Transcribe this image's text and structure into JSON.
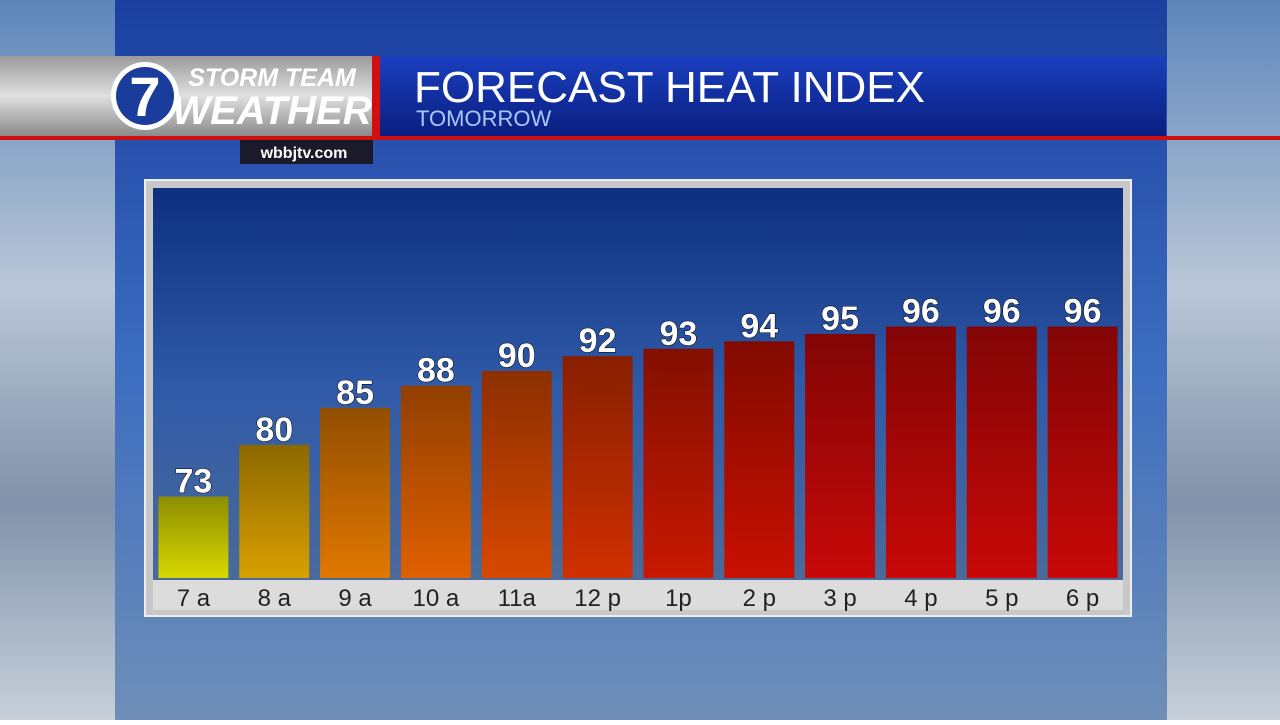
{
  "header": {
    "logo": "7",
    "brand_top": "STORM TEAM",
    "brand_bottom": "WEATHER",
    "website": "wbbjtv.com"
  },
  "chart_data": {
    "type": "bar",
    "title": "FORECAST HEAT INDEX",
    "subtitle": "TOMORROW",
    "categories": [
      "7 a",
      "8 a",
      "9 a",
      "10 a",
      "11a",
      "12 p",
      "1p",
      "2 p",
      "3 p",
      "4 p",
      "5 p",
      "6 p"
    ],
    "values": [
      73,
      80,
      85,
      88,
      90,
      92,
      93,
      94,
      95,
      96,
      96,
      96
    ],
    "colors": [
      "#d8d800",
      "#d8a000",
      "#e07800",
      "#e06000",
      "#d84800",
      "#d03000",
      "#c81800",
      "#c81000",
      "#c80808",
      "#c80808",
      "#c80808",
      "#c80808"
    ],
    "ylim": [
      62,
      100
    ]
  }
}
